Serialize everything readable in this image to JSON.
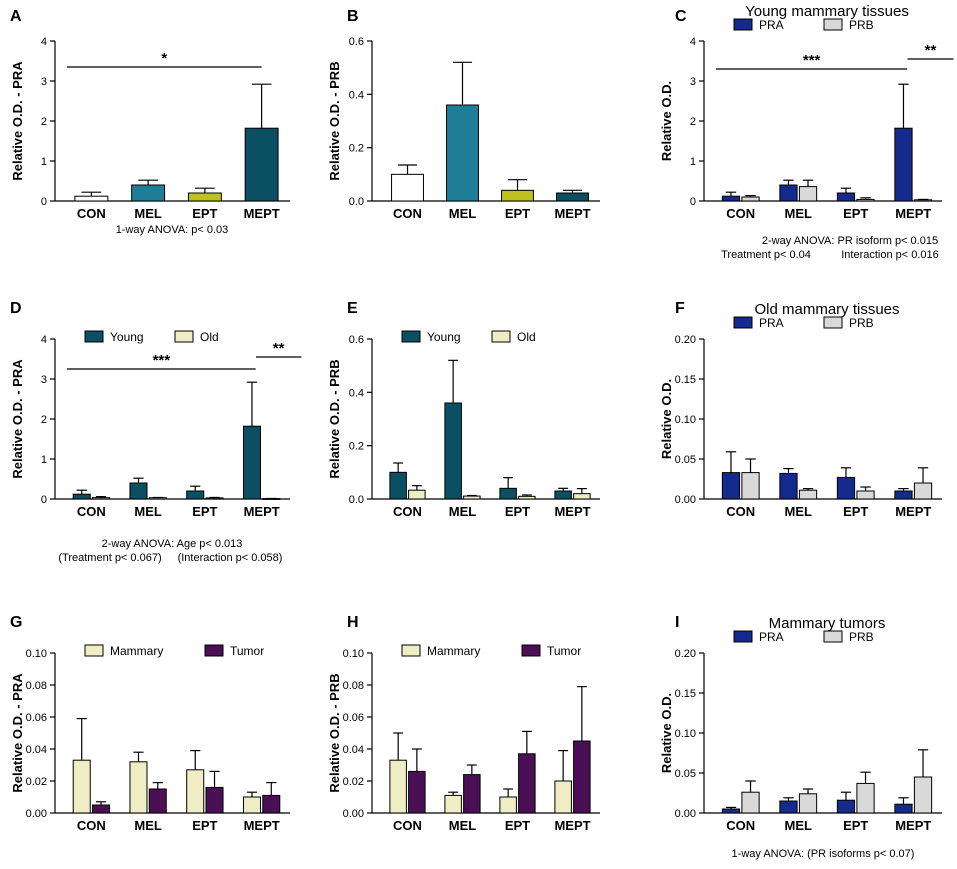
{
  "chart_data": [
    {
      "panel": "A",
      "type": "bar",
      "ylabel": "Relative O.D. - PRA",
      "categories": [
        "CON",
        "MEL",
        "EPT",
        "MEPT"
      ],
      "yticks": [
        "0",
        "1",
        "2",
        "3",
        "4"
      ],
      "ylim": [
        0,
        4
      ],
      "series": [
        {
          "name": "",
          "values": [
            0.12,
            0.4,
            0.2,
            1.82
          ],
          "errors": [
            0.1,
            0.12,
            0.12,
            1.1
          ],
          "colors": [
            "#ffffff",
            "#1f7f99",
            "#bfc21e",
            "#0b4f62"
          ]
        }
      ],
      "annotations": [
        {
          "text": "*",
          "from": 0,
          "to": 3,
          "y": 3.35
        }
      ],
      "notes": [
        "1-way ANOVA: p< 0.03"
      ]
    },
    {
      "panel": "B",
      "type": "bar",
      "ylabel": "Relative O.D. - PRB",
      "categories": [
        "CON",
        "MEL",
        "EPT",
        "MEPT"
      ],
      "yticks": [
        "0.0",
        "0.2",
        "0.4",
        "0.6"
      ],
      "ylim": [
        0,
        0.6
      ],
      "series": [
        {
          "name": "",
          "values": [
            0.1,
            0.36,
            0.04,
            0.03
          ],
          "errors": [
            0.035,
            0.16,
            0.04,
            0.01
          ],
          "colors": [
            "#ffffff",
            "#1f7f99",
            "#bfc21e",
            "#0b4f62"
          ]
        }
      ],
      "annotations": [],
      "notes": []
    },
    {
      "panel": "C",
      "type": "bar",
      "title": "Young mammary tissues",
      "ylabel": "Relative O.D.",
      "categories": [
        "CON",
        "MEL",
        "EPT",
        "MEPT"
      ],
      "yticks": [
        "0",
        "1",
        "2",
        "3",
        "4"
      ],
      "ylim": [
        0,
        4
      ],
      "series": [
        {
          "name": "PRA",
          "color": "#142a8c",
          "values": [
            0.12,
            0.4,
            0.2,
            1.82
          ],
          "errors": [
            0.1,
            0.12,
            0.12,
            1.1
          ]
        },
        {
          "name": "PRB",
          "color": "#d9d9d9",
          "values": [
            0.1,
            0.36,
            0.04,
            0.03
          ],
          "errors": [
            0.035,
            0.16,
            0.04,
            0.01
          ]
        }
      ],
      "annotations": [
        {
          "text": "***",
          "from": 0,
          "to": 3,
          "y": 3.3
        },
        {
          "text": "**",
          "from": 3,
          "to": 3.7,
          "y": 3.55
        }
      ],
      "notes": [
        "2-way ANOVA: PR isoform p< 0.015",
        "Treatment p< 0.04",
        "Interaction p< 0.016"
      ]
    },
    {
      "panel": "D",
      "type": "bar",
      "ylabel": "Relative O.D. - PRA",
      "categories": [
        "CON",
        "MEL",
        "EPT",
        "MEPT"
      ],
      "yticks": [
        "0",
        "1",
        "2",
        "3",
        "4"
      ],
      "ylim": [
        0,
        4
      ],
      "series": [
        {
          "name": "Young",
          "color": "#0b4f62",
          "values": [
            0.12,
            0.4,
            0.2,
            1.82
          ],
          "errors": [
            0.1,
            0.12,
            0.12,
            1.1
          ]
        },
        {
          "name": "Old",
          "color": "#eeedc4",
          "values": [
            0.033,
            0.032,
            0.027,
            0.01
          ],
          "errors": [
            0.026,
            0.006,
            0.012,
            0.003
          ]
        }
      ],
      "annotations": [
        {
          "text": "***",
          "from": 0,
          "to": 3,
          "y": 3.25
        },
        {
          "text": "**",
          "from": 3,
          "to": 3.7,
          "y": 3.55
        }
      ],
      "notes": [
        "2-way ANOVA: Age p< 0.013",
        "(Treatment p< 0.067)",
        "(Interaction p< 0.058)"
      ]
    },
    {
      "panel": "E",
      "type": "bar",
      "ylabel": "Relative O.D. - PRB",
      "categories": [
        "CON",
        "MEL",
        "EPT",
        "MEPT"
      ],
      "yticks": [
        "0.0",
        "0.2",
        "0.4",
        "0.6"
      ],
      "ylim": [
        0,
        0.6
      ],
      "series": [
        {
          "name": "Young",
          "color": "#0b4f62",
          "values": [
            0.1,
            0.36,
            0.04,
            0.03
          ],
          "errors": [
            0.035,
            0.16,
            0.04,
            0.01
          ]
        },
        {
          "name": "Old",
          "color": "#eeedc4",
          "values": [
            0.033,
            0.011,
            0.01,
            0.02
          ],
          "errors": [
            0.017,
            0.002,
            0.005,
            0.019
          ]
        }
      ],
      "annotations": [],
      "notes": []
    },
    {
      "panel": "F",
      "type": "bar",
      "title": "Old mammary tissues",
      "ylabel": "Relative O.D.",
      "categories": [
        "CON",
        "MEL",
        "EPT",
        "MEPT"
      ],
      "yticks": [
        "0.00",
        "0.05",
        "0.10",
        "0.15",
        "0.20"
      ],
      "ylim": [
        0,
        0.2
      ],
      "series": [
        {
          "name": "PRA",
          "color": "#142a8c",
          "values": [
            0.033,
            0.032,
            0.027,
            0.01
          ],
          "errors": [
            0.026,
            0.006,
            0.012,
            0.003
          ]
        },
        {
          "name": "PRB",
          "color": "#d9d9d9",
          "values": [
            0.033,
            0.011,
            0.01,
            0.02
          ],
          "errors": [
            0.017,
            0.002,
            0.005,
            0.019
          ]
        }
      ],
      "annotations": [],
      "notes": []
    },
    {
      "panel": "G",
      "type": "bar",
      "ylabel": "Relative O.D. - PRA",
      "categories": [
        "CON",
        "MEL",
        "EPT",
        "MEPT"
      ],
      "yticks": [
        "0.00",
        "0.02",
        "0.04",
        "0.06",
        "0.08",
        "0.10"
      ],
      "ylim": [
        0,
        0.1
      ],
      "series": [
        {
          "name": "Mammary",
          "color": "#eeedc4",
          "values": [
            0.033,
            0.032,
            0.027,
            0.01
          ],
          "errors": [
            0.026,
            0.006,
            0.012,
            0.003
          ]
        },
        {
          "name": "Tumor",
          "color": "#4a0f55",
          "values": [
            0.005,
            0.015,
            0.016,
            0.011
          ],
          "errors": [
            0.002,
            0.004,
            0.01,
            0.008
          ]
        }
      ],
      "annotations": [],
      "notes": []
    },
    {
      "panel": "H",
      "type": "bar",
      "ylabel": "Relative O.D. - PRB",
      "categories": [
        "CON",
        "MEL",
        "EPT",
        "MEPT"
      ],
      "yticks": [
        "0.00",
        "0.02",
        "0.04",
        "0.06",
        "0.08",
        "0.10"
      ],
      "ylim": [
        0,
        0.1
      ],
      "series": [
        {
          "name": "Mammary",
          "color": "#eeedc4",
          "values": [
            0.033,
            0.011,
            0.01,
            0.02
          ],
          "errors": [
            0.017,
            0.002,
            0.005,
            0.019
          ]
        },
        {
          "name": "Tumor",
          "color": "#4a0f55",
          "values": [
            0.026,
            0.024,
            0.037,
            0.045
          ],
          "errors": [
            0.014,
            0.006,
            0.014,
            0.034
          ]
        }
      ],
      "annotations": [],
      "notes": []
    },
    {
      "panel": "I",
      "type": "bar",
      "title": "Mammary tumors",
      "ylabel": "Relative O.D.",
      "categories": [
        "CON",
        "MEL",
        "EPT",
        "MEPT"
      ],
      "yticks": [
        "0.00",
        "0.05",
        "0.10",
        "0.15",
        "0.20"
      ],
      "ylim": [
        0,
        0.2
      ],
      "series": [
        {
          "name": "PRA",
          "color": "#142a8c",
          "values": [
            0.005,
            0.015,
            0.016,
            0.011
          ],
          "errors": [
            0.002,
            0.004,
            0.01,
            0.008
          ]
        },
        {
          "name": "PRB",
          "color": "#d9d9d9",
          "values": [
            0.026,
            0.024,
            0.037,
            0.045
          ],
          "errors": [
            0.014,
            0.006,
            0.014,
            0.034
          ]
        }
      ],
      "annotations": [],
      "notes": [
        "1-way ANOVA: (PR isoforms p< 0.07)"
      ]
    }
  ]
}
